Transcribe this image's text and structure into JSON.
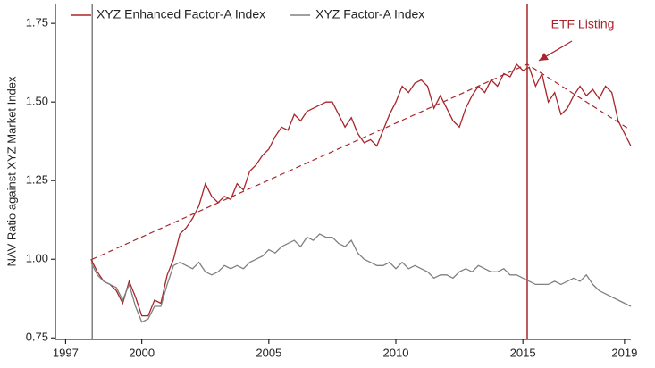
{
  "chart_data": {
    "type": "line",
    "y_label": "NAV Ratio against XYZ Market Index",
    "x": [
      1998.0,
      1998.25,
      1998.5,
      1998.75,
      1999.0,
      1999.25,
      1999.5,
      1999.75,
      2000.0,
      2000.25,
      2000.5,
      2000.75,
      2001.0,
      2001.25,
      2001.5,
      2001.75,
      2002.0,
      2002.25,
      2002.5,
      2002.75,
      2003.0,
      2003.25,
      2003.5,
      2003.75,
      2004.0,
      2004.25,
      2004.5,
      2004.75,
      2005.0,
      2005.25,
      2005.5,
      2005.75,
      2006.0,
      2006.25,
      2006.5,
      2006.75,
      2007.0,
      2007.25,
      2007.5,
      2007.75,
      2008.0,
      2008.25,
      2008.5,
      2008.75,
      2009.0,
      2009.25,
      2009.5,
      2009.75,
      2010.0,
      2010.25,
      2010.5,
      2010.75,
      2011.0,
      2011.25,
      2011.5,
      2011.75,
      2012.0,
      2012.25,
      2012.5,
      2012.75,
      2013.0,
      2013.25,
      2013.5,
      2013.75,
      2014.0,
      2014.25,
      2014.5,
      2014.75,
      2015.0,
      2015.25,
      2015.5,
      2015.75,
      2016.0,
      2016.25,
      2016.5,
      2016.75,
      2017.0,
      2017.25,
      2017.5,
      2017.75,
      2018.0,
      2018.25,
      2018.5,
      2018.75,
      2019.0,
      2019.25
    ],
    "series": [
      {
        "name": "XYZ Enhanced Factor-A Index",
        "color": "#a8262b",
        "values": [
          1.0,
          0.96,
          0.93,
          0.92,
          0.9,
          0.86,
          0.93,
          0.88,
          0.82,
          0.82,
          0.87,
          0.86,
          0.95,
          1.0,
          1.08,
          1.1,
          1.13,
          1.17,
          1.24,
          1.2,
          1.18,
          1.2,
          1.19,
          1.24,
          1.22,
          1.28,
          1.3,
          1.33,
          1.35,
          1.39,
          1.42,
          1.41,
          1.46,
          1.44,
          1.47,
          1.48,
          1.49,
          1.5,
          1.5,
          1.46,
          1.42,
          1.45,
          1.4,
          1.37,
          1.38,
          1.36,
          1.41,
          1.46,
          1.5,
          1.55,
          1.53,
          1.56,
          1.57,
          1.55,
          1.48,
          1.52,
          1.48,
          1.44,
          1.42,
          1.48,
          1.52,
          1.55,
          1.53,
          1.57,
          1.55,
          1.59,
          1.58,
          1.62,
          1.6,
          1.61,
          1.55,
          1.59,
          1.5,
          1.53,
          1.46,
          1.48,
          1.52,
          1.55,
          1.52,
          1.54,
          1.51,
          1.55,
          1.53,
          1.44,
          1.4,
          1.36
        ]
      },
      {
        "name": "XYZ Factor-A Index",
        "color": "#808080",
        "values": [
          0.99,
          0.95,
          0.93,
          0.92,
          0.91,
          0.87,
          0.92,
          0.85,
          0.8,
          0.81,
          0.85,
          0.85,
          0.92,
          0.98,
          0.99,
          0.98,
          0.97,
          0.99,
          0.96,
          0.95,
          0.96,
          0.98,
          0.97,
          0.98,
          0.97,
          0.99,
          1.0,
          1.01,
          1.03,
          1.02,
          1.04,
          1.05,
          1.06,
          1.04,
          1.07,
          1.06,
          1.08,
          1.07,
          1.07,
          1.05,
          1.04,
          1.06,
          1.02,
          1.0,
          0.99,
          0.98,
          0.98,
          0.99,
          0.97,
          0.99,
          0.97,
          0.98,
          0.97,
          0.96,
          0.94,
          0.95,
          0.95,
          0.94,
          0.96,
          0.97,
          0.96,
          0.98,
          0.97,
          0.96,
          0.96,
          0.97,
          0.95,
          0.95,
          0.94,
          0.93,
          0.92,
          0.92,
          0.92,
          0.93,
          0.92,
          0.93,
          0.94,
          0.93,
          0.95,
          0.92,
          0.9,
          0.89,
          0.88,
          0.87,
          0.86,
          0.85
        ]
      }
    ],
    "trend": {
      "color": "#a8262b",
      "x": [
        1998.05,
        2015.17,
        2019.25
      ],
      "values": [
        1.0,
        1.62,
        1.41
      ]
    },
    "vlines": [
      {
        "x": 1998.05,
        "color": "#808080"
      },
      {
        "x": 2015.17,
        "color": "#a8262b"
      }
    ],
    "annotation": "ETF Listing",
    "xlim": [
      1996.6,
      2019.25
    ],
    "xticks": [
      1997,
      2000,
      2005,
      2010,
      2015,
      2019
    ],
    "ylim": [
      0.745,
      1.81
    ],
    "yticks": [
      0.75,
      {
        "value": 1.0,
        "label": "1.00"
      },
      1.25,
      {
        "value": 1.5,
        "label": "1.50"
      },
      1.75
    ],
    "legend": "top-left"
  }
}
